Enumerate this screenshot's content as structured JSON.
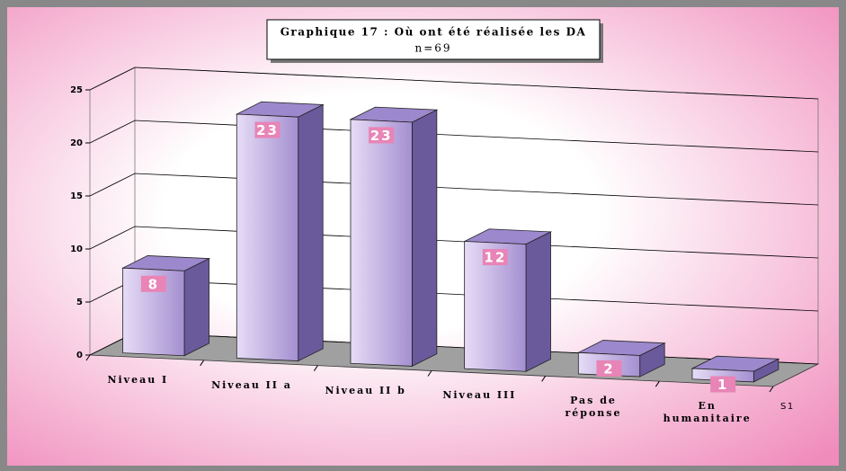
{
  "chart_data": {
    "type": "bar3d",
    "title": "Graphique 17 : Où ont été réalisée les DA",
    "subtitle": "n=69",
    "categories": [
      "Niveau I",
      "Niveau II a",
      "Niveau II b",
      "Niveau III",
      "Pas de réponse",
      "En humanitaire"
    ],
    "series": [
      {
        "name": "S1",
        "color": "#b8a4dc",
        "values": [
          8,
          23,
          23,
          12,
          2,
          1
        ]
      }
    ],
    "ylim": [
      0,
      25
    ],
    "yticks": [
      0,
      5,
      10,
      15,
      20,
      25
    ],
    "grid": true
  }
}
